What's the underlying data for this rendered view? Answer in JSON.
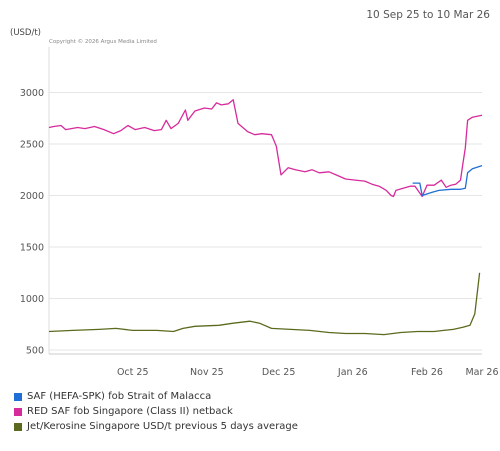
{
  "header": {
    "date_range": "10 Sep 25 to 10 Mar 26",
    "copyright": "Copyright © 2026 Argus Media Limited"
  },
  "chart_data": {
    "type": "line",
    "ylabel": "(USD/t)",
    "ylim": [
      500,
      3000
    ],
    "y_ticks": [
      500,
      1000,
      1500,
      2000,
      2500,
      3000
    ],
    "x_range": [
      "2025-09-10",
      "2026-03-10"
    ],
    "x_ticks": [
      {
        "label": "Oct 25",
        "date": "2025-10-15"
      },
      {
        "label": "Nov 25",
        "date": "2025-11-15"
      },
      {
        "label": "Dec 25",
        "date": "2025-12-15"
      },
      {
        "label": "Jan 26",
        "date": "2026-01-15"
      },
      {
        "label": "Feb 26",
        "date": "2026-02-15"
      },
      {
        "label": "Mar 26",
        "date": "2026-03-10"
      }
    ],
    "grid": true,
    "legend_position": "bottom",
    "series": [
      {
        "name": "SAF (HEFA-SPK) fob Strait of Malacca",
        "color": "#1f6fd6",
        "points": [
          [
            "2026-02-09",
            2120
          ],
          [
            "2026-02-12",
            2120
          ],
          [
            "2026-02-13",
            2000
          ],
          [
            "2026-02-17",
            2030
          ],
          [
            "2026-02-20",
            2050
          ],
          [
            "2026-02-25",
            2060
          ],
          [
            "2026-03-01",
            2060
          ],
          [
            "2026-03-03",
            2070
          ],
          [
            "2026-03-04",
            2220
          ],
          [
            "2026-03-06",
            2260
          ],
          [
            "2026-03-10",
            2290
          ]
        ]
      },
      {
        "name": "RED SAF fob Singapore (Class II) netback",
        "color": "#d62b9c",
        "points": [
          [
            "2025-09-10",
            2660
          ],
          [
            "2025-09-12",
            2670
          ],
          [
            "2025-09-15",
            2680
          ],
          [
            "2025-09-17",
            2640
          ],
          [
            "2025-09-22",
            2660
          ],
          [
            "2025-09-25",
            2650
          ],
          [
            "2025-09-29",
            2670
          ],
          [
            "2025-10-03",
            2640
          ],
          [
            "2025-10-07",
            2600
          ],
          [
            "2025-10-10",
            2630
          ],
          [
            "2025-10-13",
            2680
          ],
          [
            "2025-10-16",
            2640
          ],
          [
            "2025-10-20",
            2660
          ],
          [
            "2025-10-24",
            2630
          ],
          [
            "2025-10-27",
            2640
          ],
          [
            "2025-10-29",
            2730
          ],
          [
            "2025-10-31",
            2650
          ],
          [
            "2025-11-03",
            2700
          ],
          [
            "2025-11-06",
            2830
          ],
          [
            "2025-11-07",
            2730
          ],
          [
            "2025-11-10",
            2820
          ],
          [
            "2025-11-14",
            2850
          ],
          [
            "2025-11-17",
            2840
          ],
          [
            "2025-11-19",
            2900
          ],
          [
            "2025-11-21",
            2880
          ],
          [
            "2025-11-24",
            2890
          ],
          [
            "2025-11-26",
            2930
          ],
          [
            "2025-11-28",
            2700
          ],
          [
            "2025-12-02",
            2620
          ],
          [
            "2025-12-05",
            2590
          ],
          [
            "2025-12-08",
            2600
          ],
          [
            "2025-12-12",
            2590
          ],
          [
            "2025-12-14",
            2480
          ],
          [
            "2025-12-16",
            2200
          ],
          [
            "2025-12-19",
            2270
          ],
          [
            "2025-12-22",
            2250
          ],
          [
            "2025-12-26",
            2230
          ],
          [
            "2025-12-29",
            2250
          ],
          [
            "2026-01-01",
            2220
          ],
          [
            "2026-01-05",
            2230
          ],
          [
            "2026-01-08",
            2200
          ],
          [
            "2026-01-12",
            2160
          ],
          [
            "2026-01-16",
            2150
          ],
          [
            "2026-01-20",
            2140
          ],
          [
            "2026-01-23",
            2110
          ],
          [
            "2026-01-26",
            2090
          ],
          [
            "2026-01-29",
            2050
          ],
          [
            "2026-01-31",
            2000
          ],
          [
            "2026-02-01",
            1990
          ],
          [
            "2026-02-02",
            2050
          ],
          [
            "2026-02-05",
            2070
          ],
          [
            "2026-02-08",
            2090
          ],
          [
            "2026-02-10",
            2090
          ],
          [
            "2026-02-13",
            1990
          ],
          [
            "2026-02-15",
            2100
          ],
          [
            "2026-02-18",
            2100
          ],
          [
            "2026-02-21",
            2150
          ],
          [
            "2026-02-23",
            2080
          ],
          [
            "2026-02-25",
            2100
          ],
          [
            "2026-02-27",
            2110
          ],
          [
            "2026-03-01",
            2150
          ],
          [
            "2026-03-02",
            2310
          ],
          [
            "2026-03-03",
            2460
          ],
          [
            "2026-03-04",
            2730
          ],
          [
            "2026-03-06",
            2760
          ],
          [
            "2026-03-10",
            2780
          ]
        ]
      },
      {
        "name": "Jet/Kerosine Singapore USD/t previous 5 days average",
        "color": "#5b6b1e",
        "points": [
          [
            "2025-09-10",
            680
          ],
          [
            "2025-09-20",
            690
          ],
          [
            "2025-10-01",
            700
          ],
          [
            "2025-10-08",
            710
          ],
          [
            "2025-10-15",
            690
          ],
          [
            "2025-10-25",
            690
          ],
          [
            "2025-11-01",
            680
          ],
          [
            "2025-11-05",
            710
          ],
          [
            "2025-11-10",
            730
          ],
          [
            "2025-11-20",
            740
          ],
          [
            "2025-11-26",
            760
          ],
          [
            "2025-12-03",
            780
          ],
          [
            "2025-12-07",
            760
          ],
          [
            "2025-12-12",
            710
          ],
          [
            "2025-12-20",
            700
          ],
          [
            "2025-12-28",
            690
          ],
          [
            "2026-01-05",
            670
          ],
          [
            "2026-01-12",
            660
          ],
          [
            "2026-01-20",
            660
          ],
          [
            "2026-01-28",
            650
          ],
          [
            "2026-02-04",
            670
          ],
          [
            "2026-02-11",
            680
          ],
          [
            "2026-02-18",
            680
          ],
          [
            "2026-02-22",
            690
          ],
          [
            "2026-02-26",
            700
          ],
          [
            "2026-03-02",
            720
          ],
          [
            "2026-03-05",
            740
          ],
          [
            "2026-03-07",
            850
          ],
          [
            "2026-03-09",
            1250
          ]
        ]
      }
    ]
  }
}
